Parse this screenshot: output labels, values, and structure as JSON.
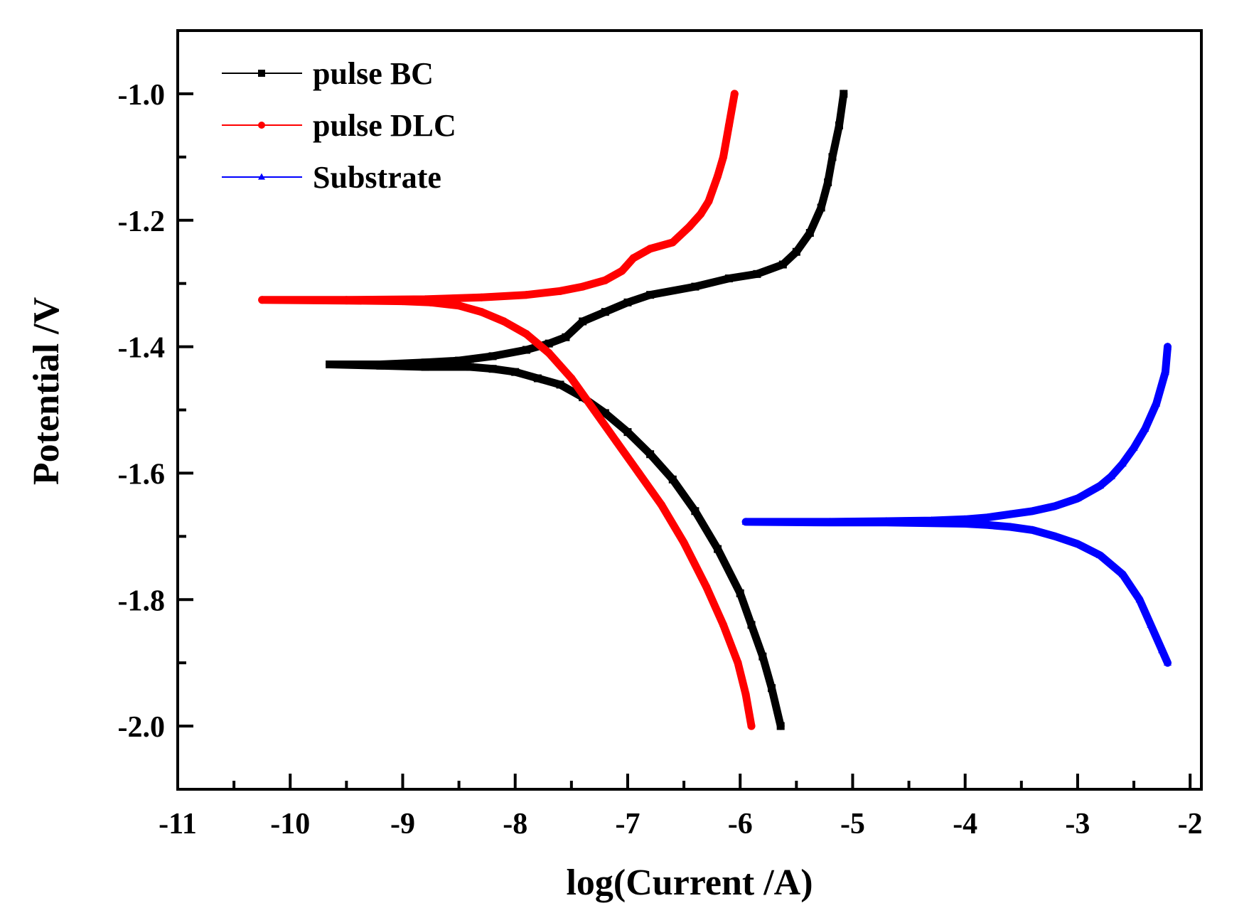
{
  "chart_data": {
    "type": "line",
    "title": "",
    "xlabel": "log(Current /A)",
    "ylabel": "Potential /V",
    "xlim": [
      -11,
      -1.9
    ],
    "ylim": [
      -2.1,
      -0.9
    ],
    "x_ticks": [
      -11,
      -10,
      -9,
      -8,
      -7,
      -6,
      -5,
      -4,
      -3,
      -2
    ],
    "x_tick_labels": [
      "-11",
      "-10",
      "-9",
      "-8",
      "-7",
      "-6",
      "-5",
      "-4",
      "-3",
      "-2"
    ],
    "y_ticks": [
      -1.0,
      -1.2,
      -1.4,
      -1.6,
      -1.8,
      -2.0
    ],
    "y_tick_labels": [
      "-1.0",
      "-1.2",
      "-1.4",
      "-1.6",
      "-1.8",
      "-2.0"
    ],
    "grid": false,
    "legend_position": "top-left",
    "series": [
      {
        "name": "pulse BC",
        "color": "#000000",
        "marker": "square",
        "points": [
          [
            -5.08,
            -1.0
          ],
          [
            -5.12,
            -1.05
          ],
          [
            -5.18,
            -1.1
          ],
          [
            -5.22,
            -1.14
          ],
          [
            -5.28,
            -1.18
          ],
          [
            -5.38,
            -1.22
          ],
          [
            -5.5,
            -1.25
          ],
          [
            -5.62,
            -1.27
          ],
          [
            -5.85,
            -1.285
          ],
          [
            -6.1,
            -1.292
          ],
          [
            -6.4,
            -1.305
          ],
          [
            -6.8,
            -1.318
          ],
          [
            -7.0,
            -1.33
          ],
          [
            -7.2,
            -1.345
          ],
          [
            -7.4,
            -1.36
          ],
          [
            -7.55,
            -1.385
          ],
          [
            -7.7,
            -1.395
          ],
          [
            -7.9,
            -1.405
          ],
          [
            -8.2,
            -1.415
          ],
          [
            -8.5,
            -1.422
          ],
          [
            -8.8,
            -1.425
          ],
          [
            -9.2,
            -1.428
          ],
          [
            -9.65,
            -1.428
          ],
          [
            -9.2,
            -1.43
          ],
          [
            -8.8,
            -1.432
          ],
          [
            -8.4,
            -1.432
          ],
          [
            -8.2,
            -1.435
          ],
          [
            -8.0,
            -1.44
          ],
          [
            -7.8,
            -1.45
          ],
          [
            -7.6,
            -1.46
          ],
          [
            -7.4,
            -1.48
          ],
          [
            -7.2,
            -1.505
          ],
          [
            -7.0,
            -1.535
          ],
          [
            -6.8,
            -1.57
          ],
          [
            -6.6,
            -1.61
          ],
          [
            -6.4,
            -1.66
          ],
          [
            -6.2,
            -1.72
          ],
          [
            -6.0,
            -1.79
          ],
          [
            -5.9,
            -1.84
          ],
          [
            -5.8,
            -1.89
          ],
          [
            -5.72,
            -1.94
          ],
          [
            -5.64,
            -2.0
          ]
        ]
      },
      {
        "name": "pulse DLC",
        "color": "#ff0000",
        "marker": "circle",
        "points": [
          [
            -6.05,
            -1.0
          ],
          [
            -6.1,
            -1.05
          ],
          [
            -6.15,
            -1.1
          ],
          [
            -6.2,
            -1.13
          ],
          [
            -6.28,
            -1.17
          ],
          [
            -6.35,
            -1.19
          ],
          [
            -6.45,
            -1.21
          ],
          [
            -6.6,
            -1.235
          ],
          [
            -6.8,
            -1.245
          ],
          [
            -6.95,
            -1.26
          ],
          [
            -7.05,
            -1.28
          ],
          [
            -7.2,
            -1.295
          ],
          [
            -7.4,
            -1.305
          ],
          [
            -7.6,
            -1.312
          ],
          [
            -7.9,
            -1.318
          ],
          [
            -8.3,
            -1.322
          ],
          [
            -8.8,
            -1.325
          ],
          [
            -9.5,
            -1.326
          ],
          [
            -10.25,
            -1.326
          ],
          [
            -9.5,
            -1.327
          ],
          [
            -9.0,
            -1.328
          ],
          [
            -8.75,
            -1.33
          ],
          [
            -8.5,
            -1.335
          ],
          [
            -8.3,
            -1.345
          ],
          [
            -8.1,
            -1.36
          ],
          [
            -7.9,
            -1.38
          ],
          [
            -7.7,
            -1.41
          ],
          [
            -7.5,
            -1.45
          ],
          [
            -7.3,
            -1.5
          ],
          [
            -7.1,
            -1.55
          ],
          [
            -6.9,
            -1.6
          ],
          [
            -6.7,
            -1.65
          ],
          [
            -6.5,
            -1.71
          ],
          [
            -6.3,
            -1.78
          ],
          [
            -6.15,
            -1.84
          ],
          [
            -6.02,
            -1.9
          ],
          [
            -5.95,
            -1.95
          ],
          [
            -5.9,
            -2.0
          ]
        ]
      },
      {
        "name": "Substrate",
        "color": "#0000ff",
        "marker": "triangle",
        "points": [
          [
            -2.2,
            -1.4
          ],
          [
            -2.22,
            -1.44
          ],
          [
            -2.3,
            -1.49
          ],
          [
            -2.4,
            -1.53
          ],
          [
            -2.5,
            -1.56
          ],
          [
            -2.6,
            -1.585
          ],
          [
            -2.7,
            -1.605
          ],
          [
            -2.8,
            -1.62
          ],
          [
            -3.0,
            -1.64
          ],
          [
            -3.2,
            -1.652
          ],
          [
            -3.4,
            -1.66
          ],
          [
            -3.6,
            -1.665
          ],
          [
            -3.8,
            -1.67
          ],
          [
            -4.0,
            -1.673
          ],
          [
            -4.3,
            -1.675
          ],
          [
            -4.7,
            -1.676
          ],
          [
            -5.2,
            -1.677
          ],
          [
            -5.95,
            -1.677
          ],
          [
            -5.2,
            -1.678
          ],
          [
            -4.7,
            -1.678
          ],
          [
            -4.3,
            -1.679
          ],
          [
            -4.0,
            -1.68
          ],
          [
            -3.8,
            -1.682
          ],
          [
            -3.6,
            -1.685
          ],
          [
            -3.4,
            -1.69
          ],
          [
            -3.2,
            -1.7
          ],
          [
            -3.0,
            -1.712
          ],
          [
            -2.8,
            -1.73
          ],
          [
            -2.6,
            -1.76
          ],
          [
            -2.45,
            -1.8
          ],
          [
            -2.35,
            -1.84
          ],
          [
            -2.25,
            -1.88
          ],
          [
            -2.2,
            -1.9
          ]
        ]
      }
    ]
  }
}
